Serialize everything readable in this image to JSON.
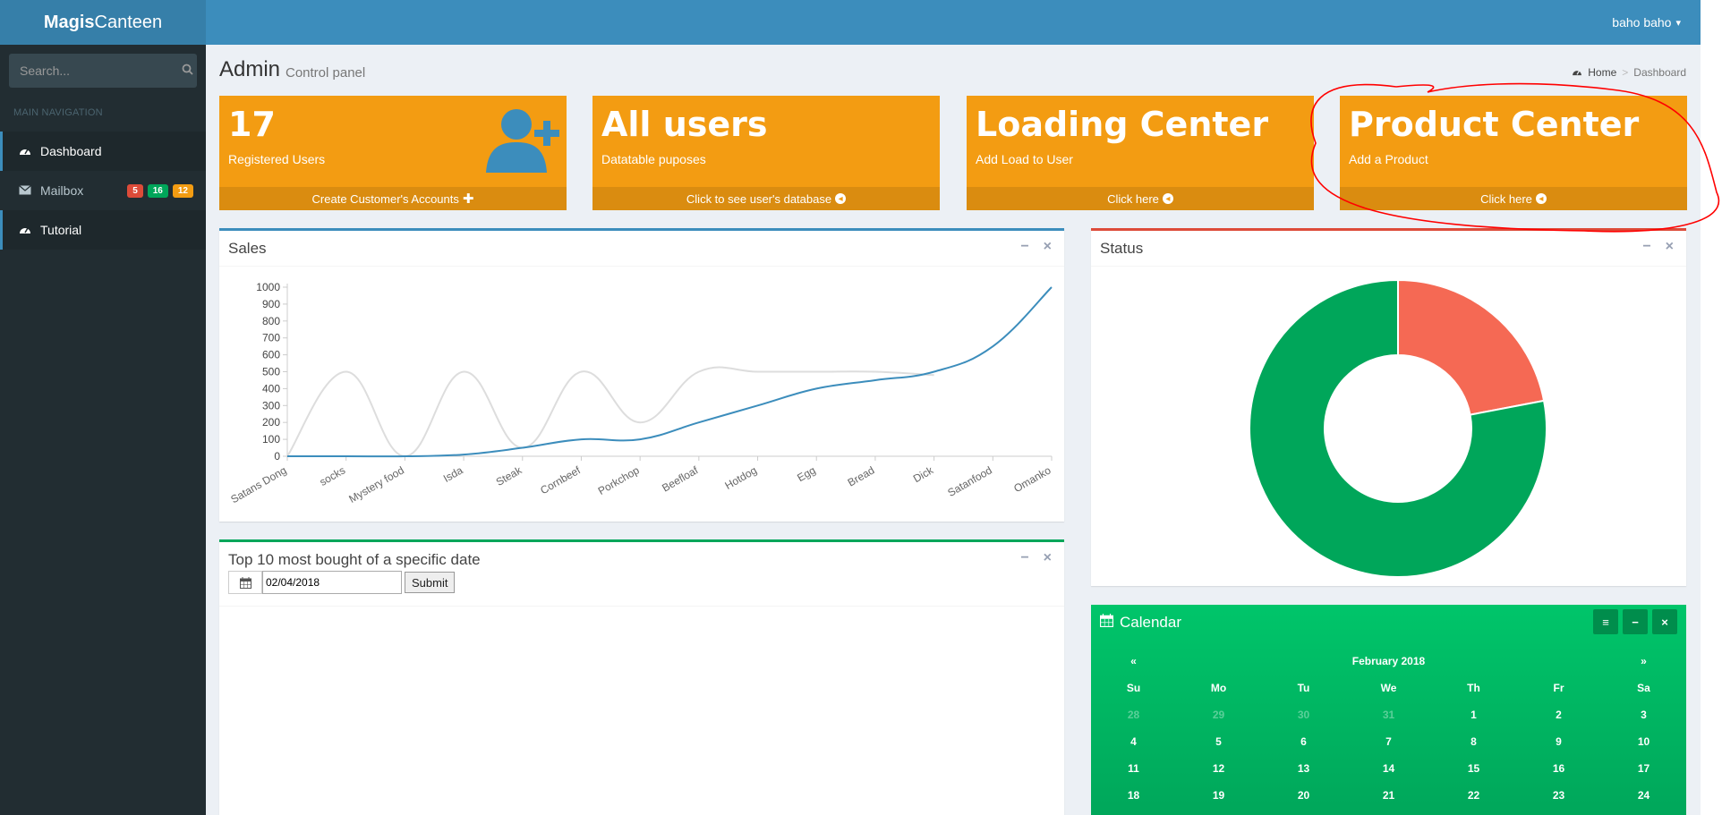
{
  "header": {
    "logo_bold": "Magis",
    "logo_rest": "Canteen",
    "user_name": "baho baho"
  },
  "sidebar": {
    "search_placeholder": "Search...",
    "nav_header": "MAIN NAVIGATION",
    "items": [
      {
        "label": "Dashboard",
        "icon": "dashboard-icon"
      },
      {
        "label": "Mailbox",
        "icon": "envelope-icon",
        "badges": [
          "5",
          "16",
          "12"
        ]
      },
      {
        "label": "Tutorial",
        "icon": "dashboard-icon"
      }
    ]
  },
  "page": {
    "title": "Admin",
    "subtitle": "Control panel",
    "breadcrumb_home": "Home",
    "breadcrumb_current": "Dashboard"
  },
  "boxes": [
    {
      "title": "17",
      "subtitle": "Registered Users",
      "footer": "Create Customer's Accounts"
    },
    {
      "title": "All users",
      "subtitle": "Datatable puposes",
      "footer": "Click to see user's database"
    },
    {
      "title": "Loading Center",
      "subtitle": "Add Load to User",
      "footer": "Click here"
    },
    {
      "title": "Product Center",
      "subtitle": "Add a Product",
      "footer": "Click here"
    }
  ],
  "panels": {
    "sales_title": "Sales",
    "status_title": "Status",
    "top10_title": "Top 10 most bought of a specific date",
    "date_value": "02/04/2018",
    "submit_label": "Submit"
  },
  "calendar": {
    "title": "Calendar",
    "month": "February 2018",
    "prev": "«",
    "next": "»",
    "weekdays": [
      "Su",
      "Mo",
      "Tu",
      "We",
      "Th",
      "Fr",
      "Sa"
    ],
    "weeks": [
      [
        "28",
        "29",
        "30",
        "31",
        "1",
        "2",
        "3"
      ],
      [
        "4",
        "5",
        "6",
        "7",
        "8",
        "9",
        "10"
      ],
      [
        "11",
        "12",
        "13",
        "14",
        "15",
        "16",
        "17"
      ],
      [
        "18",
        "19",
        "20",
        "21",
        "22",
        "23",
        "24"
      ]
    ]
  },
  "chart_data": [
    {
      "type": "line",
      "categories": [
        "Satans Dong",
        "socks",
        "Mystery food",
        "Isda",
        "Steak",
        "Cornbeef",
        "Porkchop",
        "Beefloaf",
        "Hotdog",
        "Egg",
        "Bread",
        "Dick",
        "Satanfood",
        "Omanko"
      ],
      "ylim": [
        0,
        1000
      ],
      "yticks": [
        0,
        100,
        200,
        300,
        400,
        500,
        600,
        700,
        800,
        900,
        1000
      ],
      "grid": false,
      "series": [
        {
          "color": "#dddddd",
          "values": [
            0,
            500,
            0,
            500,
            50,
            500,
            200,
            500,
            500,
            500,
            500,
            480,
            null,
            null
          ]
        },
        {
          "color": "#3c8dbc",
          "values": [
            0,
            0,
            0,
            10,
            50,
            100,
            100,
            200,
            300,
            400,
            450,
            500,
            650,
            1000
          ]
        }
      ]
    },
    {
      "type": "pie",
      "donut": true,
      "slices": [
        {
          "value": 22,
          "color": "#f56954"
        },
        {
          "value": 78,
          "color": "#00a65a"
        }
      ]
    }
  ]
}
